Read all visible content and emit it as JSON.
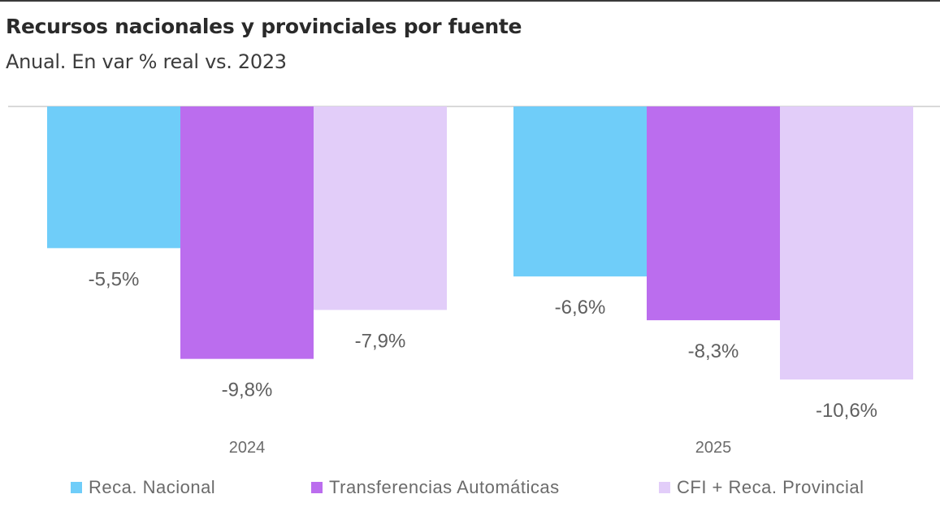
{
  "chart_data": {
    "type": "bar",
    "title": "Recursos nacionales y provinciales por fuente",
    "subtitle": "Anual. En var % real vs. 2023",
    "xlabel": "",
    "ylabel": "",
    "categories": [
      "2024",
      "2025"
    ],
    "series": [
      {
        "name": "Reca. Nacional",
        "color": "#6fcdf9",
        "values": [
          -5.5,
          -6.6
        ],
        "labels": [
          "-5,5%",
          "-6,6%"
        ]
      },
      {
        "name": "Transferencias Automáticas",
        "color": "#bb6dee",
        "values": [
          -9.8,
          -8.3
        ],
        "labels": [
          "-9,8%",
          "-8,3%"
        ]
      },
      {
        "name": "CFI + Reca. Provincial",
        "color": "#e2cdf9",
        "values": [
          -7.9,
          -10.6
        ],
        "labels": [
          "-7,9%",
          "-10,6%"
        ]
      }
    ],
    "ylim": [
      -11,
      0
    ],
    "grid": false,
    "legend_position": "bottom"
  }
}
